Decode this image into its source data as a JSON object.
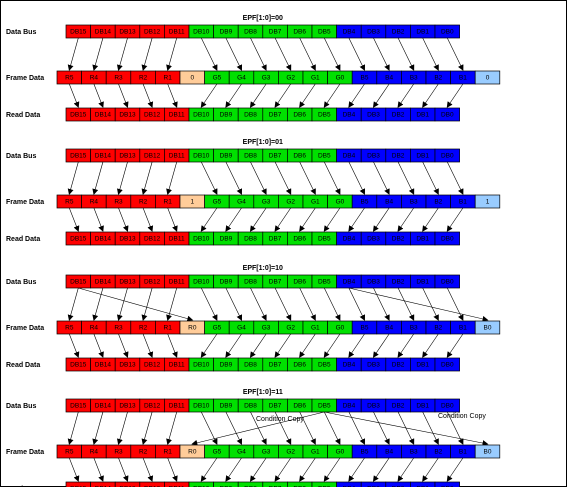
{
  "colors": {
    "red": "#ff0000",
    "green": "#00e000",
    "blue": "#0000ff",
    "peach": "#ffcc99",
    "lightblue": "#99ccff",
    "line": "#000000"
  },
  "row_labels": {
    "data_bus": "Data Bus",
    "frame_data": "Frame Data",
    "read_data": "Read Data"
  },
  "bus_cells": [
    "DB15",
    "DB14",
    "DB13",
    "DB12",
    "DB11",
    "DB10",
    "DB9",
    "DB8",
    "DB7",
    "DB6",
    "DB5",
    "DB4",
    "DB3",
    "DB2",
    "DB1",
    "DB0"
  ],
  "frame_red": [
    "R5",
    "R4",
    "R3",
    "R2",
    "R1"
  ],
  "frame_green": [
    "G5",
    "G4",
    "G3",
    "G2",
    "G1",
    "G0"
  ],
  "frame_blue": [
    "B5",
    "B4",
    "B3",
    "B2",
    "B1"
  ],
  "panels": [
    {
      "title": "EPF[1:0]=00",
      "r0": "0",
      "b0": "0",
      "notes": []
    },
    {
      "title": "EPF[1:0]=01",
      "r0": "1",
      "b0": "1",
      "notes": []
    },
    {
      "title": "EPF[1:0]=10",
      "r0": "R0",
      "b0": "B0",
      "notes": []
    },
    {
      "title": "EPF[1:0]=11",
      "r0": "R0",
      "b0": "B0",
      "notes": [
        "Condition Copy",
        "Condition Copy"
      ]
    }
  ]
}
